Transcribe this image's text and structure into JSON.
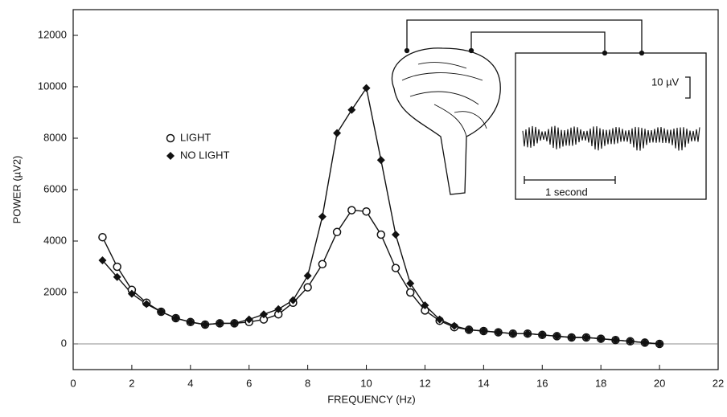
{
  "chart_data": {
    "type": "line",
    "y_label": "POWER (µV2)",
    "x_label": "FREQUENCY (Hz)",
    "x": [
      1,
      1.5,
      2,
      2.5,
      3,
      3.5,
      4,
      4.5,
      5,
      5.5,
      6,
      6.5,
      7,
      7.5,
      8,
      8.5,
      9,
      9.5,
      10,
      10.5,
      11,
      11.5,
      12,
      12.5,
      13,
      13.5,
      14,
      14.5,
      15,
      15.5,
      16,
      16.5,
      17,
      17.5,
      18,
      18.5,
      19,
      19.5,
      20
    ],
    "series": [
      {
        "name": "LIGHT",
        "color": "#111111",
        "marker": "circle",
        "values": [
          4150,
          3000,
          2100,
          1600,
          1250,
          1000,
          850,
          750,
          800,
          800,
          850,
          950,
          1150,
          1600,
          2200,
          3100,
          4350,
          5200,
          5150,
          4250,
          2950,
          2000,
          1300,
          900,
          650,
          550,
          500,
          450,
          400,
          400,
          350,
          300,
          250,
          250,
          200,
          150,
          100,
          50,
          0
        ]
      },
      {
        "name": "NO LIGHT",
        "color": "#111111",
        "marker": "diamond",
        "values": [
          3250,
          2600,
          1950,
          1550,
          1250,
          1000,
          850,
          750,
          800,
          800,
          950,
          1150,
          1350,
          1700,
          2650,
          4950,
          8200,
          9100,
          9950,
          7150,
          4250,
          2350,
          1500,
          950,
          700,
          550,
          500,
          450,
          400,
          400,
          350,
          300,
          250,
          250,
          200,
          150,
          100,
          50,
          0
        ]
      }
    ],
    "xlim": [
      0,
      22
    ],
    "xticks": [
      0,
      2,
      4,
      6,
      8,
      10,
      12,
      14,
      16,
      18,
      20,
      22
    ],
    "ylim": [
      -1000,
      13000
    ],
    "yticks": [
      0,
      2000,
      4000,
      6000,
      8000,
      10000,
      12000
    ],
    "zero_line": true,
    "annotations": [
      "10 µV",
      "1 second"
    ]
  }
}
